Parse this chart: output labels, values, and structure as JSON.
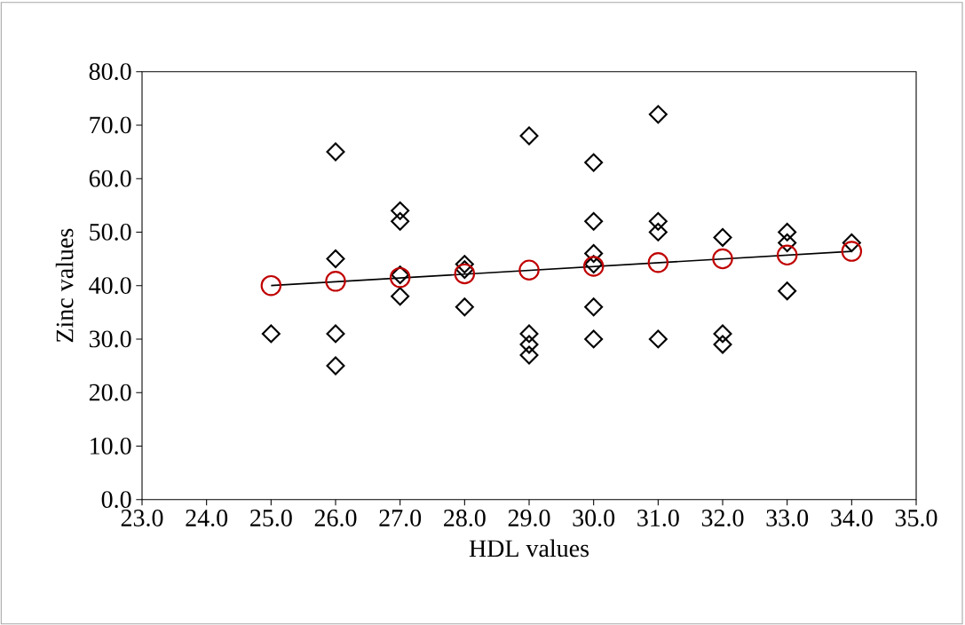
{
  "chart_data": {
    "type": "scatter",
    "xlabel": "HDL values",
    "ylabel": "Zinc values",
    "xlim": [
      23,
      35
    ],
    "ylim": [
      0,
      80
    ],
    "xticks": [
      {
        "value": 23,
        "label": "23.0"
      },
      {
        "value": 24,
        "label": "24.0"
      },
      {
        "value": 25,
        "label": "25.0"
      },
      {
        "value": 26,
        "label": "26.0"
      },
      {
        "value": 27,
        "label": "27.0"
      },
      {
        "value": 28,
        "label": "28.0"
      },
      {
        "value": 29,
        "label": "29.0"
      },
      {
        "value": 30,
        "label": "30.0"
      },
      {
        "value": 31,
        "label": "31.0"
      },
      {
        "value": 32,
        "label": "32.0"
      },
      {
        "value": 33,
        "label": "33.0"
      },
      {
        "value": 34,
        "label": "34.0"
      },
      {
        "value": 35,
        "label": "35.0"
      }
    ],
    "yticks": [
      {
        "value": 0,
        "label": "0.0"
      },
      {
        "value": 10,
        "label": "10.0"
      },
      {
        "value": 20,
        "label": "20.0"
      },
      {
        "value": 30,
        "label": "30.0"
      },
      {
        "value": 40,
        "label": "40.0"
      },
      {
        "value": 50,
        "label": "50.0"
      },
      {
        "value": 60,
        "label": "60.0"
      },
      {
        "value": 70,
        "label": "70.0"
      },
      {
        "value": 80,
        "label": "80.0"
      }
    ],
    "grid": false,
    "series": [
      {
        "marker": "diamond",
        "color": "#000000",
        "x": [
          25,
          26,
          26,
          26,
          26,
          27,
          27,
          27,
          27,
          28,
          28,
          28,
          29,
          29,
          29,
          29,
          30,
          30,
          30,
          30,
          30,
          30,
          31,
          31,
          31,
          31,
          32,
          32,
          32,
          33,
          33,
          33,
          34
        ],
        "values": [
          31,
          65,
          45,
          31,
          25,
          54,
          52,
          42,
          38,
          44,
          43,
          36,
          68,
          31,
          29,
          27,
          63,
          52,
          46,
          44,
          36,
          30,
          72,
          52,
          50,
          30,
          49,
          31,
          29,
          50,
          48,
          39,
          48
        ]
      },
      {
        "marker": "circle",
        "color": "#c00000",
        "x": [
          25,
          26,
          27,
          28,
          29,
          30,
          31,
          32,
          33,
          34
        ],
        "values": [
          40.0,
          40.8,
          41.5,
          42.2,
          42.9,
          43.6,
          44.3,
          45.0,
          45.7,
          46.4
        ]
      },
      {
        "type": "line",
        "marker": "none",
        "color": "#000000",
        "x": [
          25,
          34
        ],
        "values": [
          40.0,
          46.4
        ]
      }
    ]
  }
}
